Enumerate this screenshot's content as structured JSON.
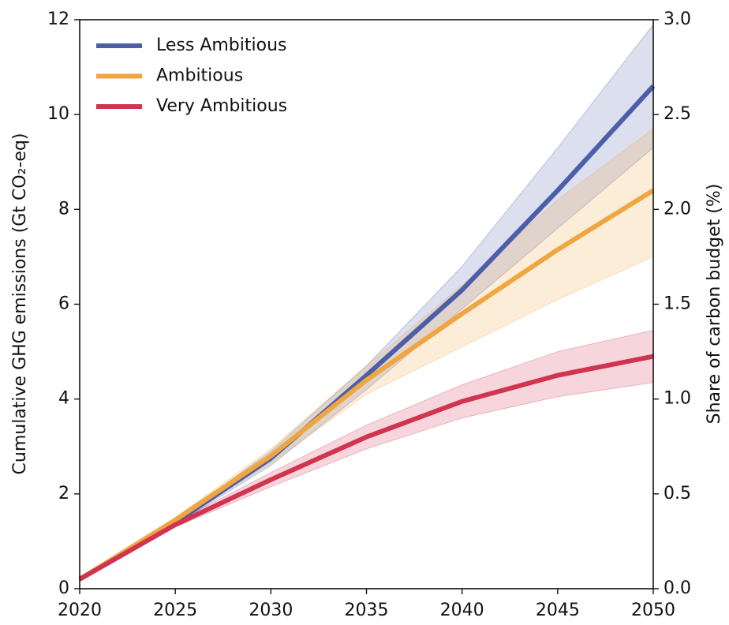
{
  "chart_data": {
    "type": "line",
    "ylabel": "Cumulative GHG emissions (Gt CO₂-eq)",
    "y2label": "Share of carbon budget (%)",
    "x": [
      2020,
      2025,
      2030,
      2035,
      2040,
      2045,
      2050
    ],
    "xlim": [
      2020,
      2050
    ],
    "xticks": [
      2020,
      2025,
      2030,
      2035,
      2040,
      2045,
      2050
    ],
    "ylim": [
      0,
      12
    ],
    "yticks": [
      0,
      2,
      4,
      6,
      8,
      10,
      12
    ],
    "y2lim": [
      0,
      3
    ],
    "y2ticks": [
      {
        "value": 0,
        "label": "0.0"
      },
      0.5,
      {
        "value": 1,
        "label": "1.0"
      },
      1.5,
      {
        "value": 2,
        "label": "2.0"
      },
      2.5,
      {
        "value": 3,
        "label": "3.0"
      }
    ],
    "legend": "upper left",
    "series": [
      {
        "name": "Less Ambitious",
        "color": "#4c5ea8",
        "values": [
          0.2,
          1.4,
          2.75,
          4.5,
          6.3,
          8.4,
          10.6
        ],
        "upper": [
          0.2,
          1.45,
          2.9,
          4.7,
          6.8,
          9.3,
          11.9
        ],
        "lower": [
          0.2,
          1.35,
          2.6,
          4.2,
          5.9,
          7.6,
          9.3
        ]
      },
      {
        "name": "Ambitious",
        "color": "#f0a640",
        "values": [
          0.2,
          1.45,
          2.8,
          4.4,
          5.8,
          7.15,
          8.4
        ],
        "upper": [
          0.2,
          1.5,
          2.95,
          4.7,
          6.4,
          8.2,
          9.7
        ],
        "lower": [
          0.2,
          1.4,
          2.65,
          4.1,
          5.1,
          6.1,
          7.0
        ]
      },
      {
        "name": "Very Ambitious",
        "color": "#d0344f",
        "values": [
          0.2,
          1.35,
          2.3,
          3.2,
          3.95,
          4.5,
          4.9
        ],
        "upper": [
          0.2,
          1.4,
          2.45,
          3.45,
          4.3,
          5.0,
          5.45
        ],
        "lower": [
          0.2,
          1.3,
          2.15,
          2.95,
          3.6,
          4.05,
          4.35
        ]
      }
    ]
  }
}
